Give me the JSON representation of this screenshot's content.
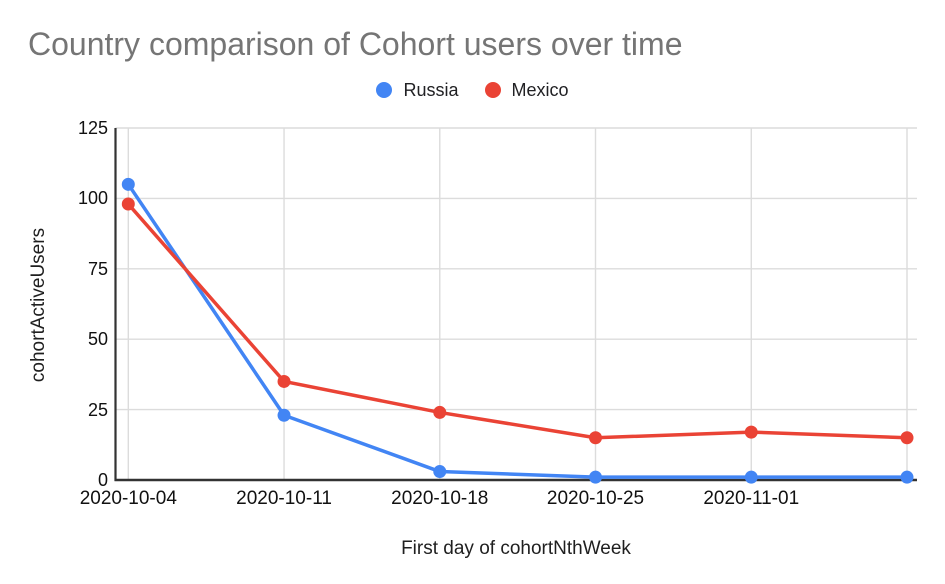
{
  "chart_data": {
    "type": "line",
    "title": "Country comparison of Cohort users over time",
    "xlabel": "First day of cohortNthWeek",
    "ylabel": "cohortActiveUsers",
    "x_labels": [
      "2020-10-04",
      "2020-10-11",
      "2020-10-18",
      "2020-10-25",
      "2020-11-01",
      ""
    ],
    "series": [
      {
        "name": "Russia",
        "color": "#4285F4",
        "values": [
          105,
          23,
          3,
          1,
          1,
          1
        ]
      },
      {
        "name": "Mexico",
        "color": "#EA4335",
        "values": [
          98,
          35,
          24,
          15,
          17,
          15
        ]
      }
    ],
    "yticks": [
      0,
      25,
      50,
      75,
      100,
      125
    ],
    "ylim": [
      0,
      125
    ],
    "grid": true,
    "legend_position": "top-center",
    "colors": {
      "title_text": "#757575",
      "axis_line": "#333333",
      "gridline": "#dcdcdc",
      "tick_text": "#111111"
    }
  }
}
